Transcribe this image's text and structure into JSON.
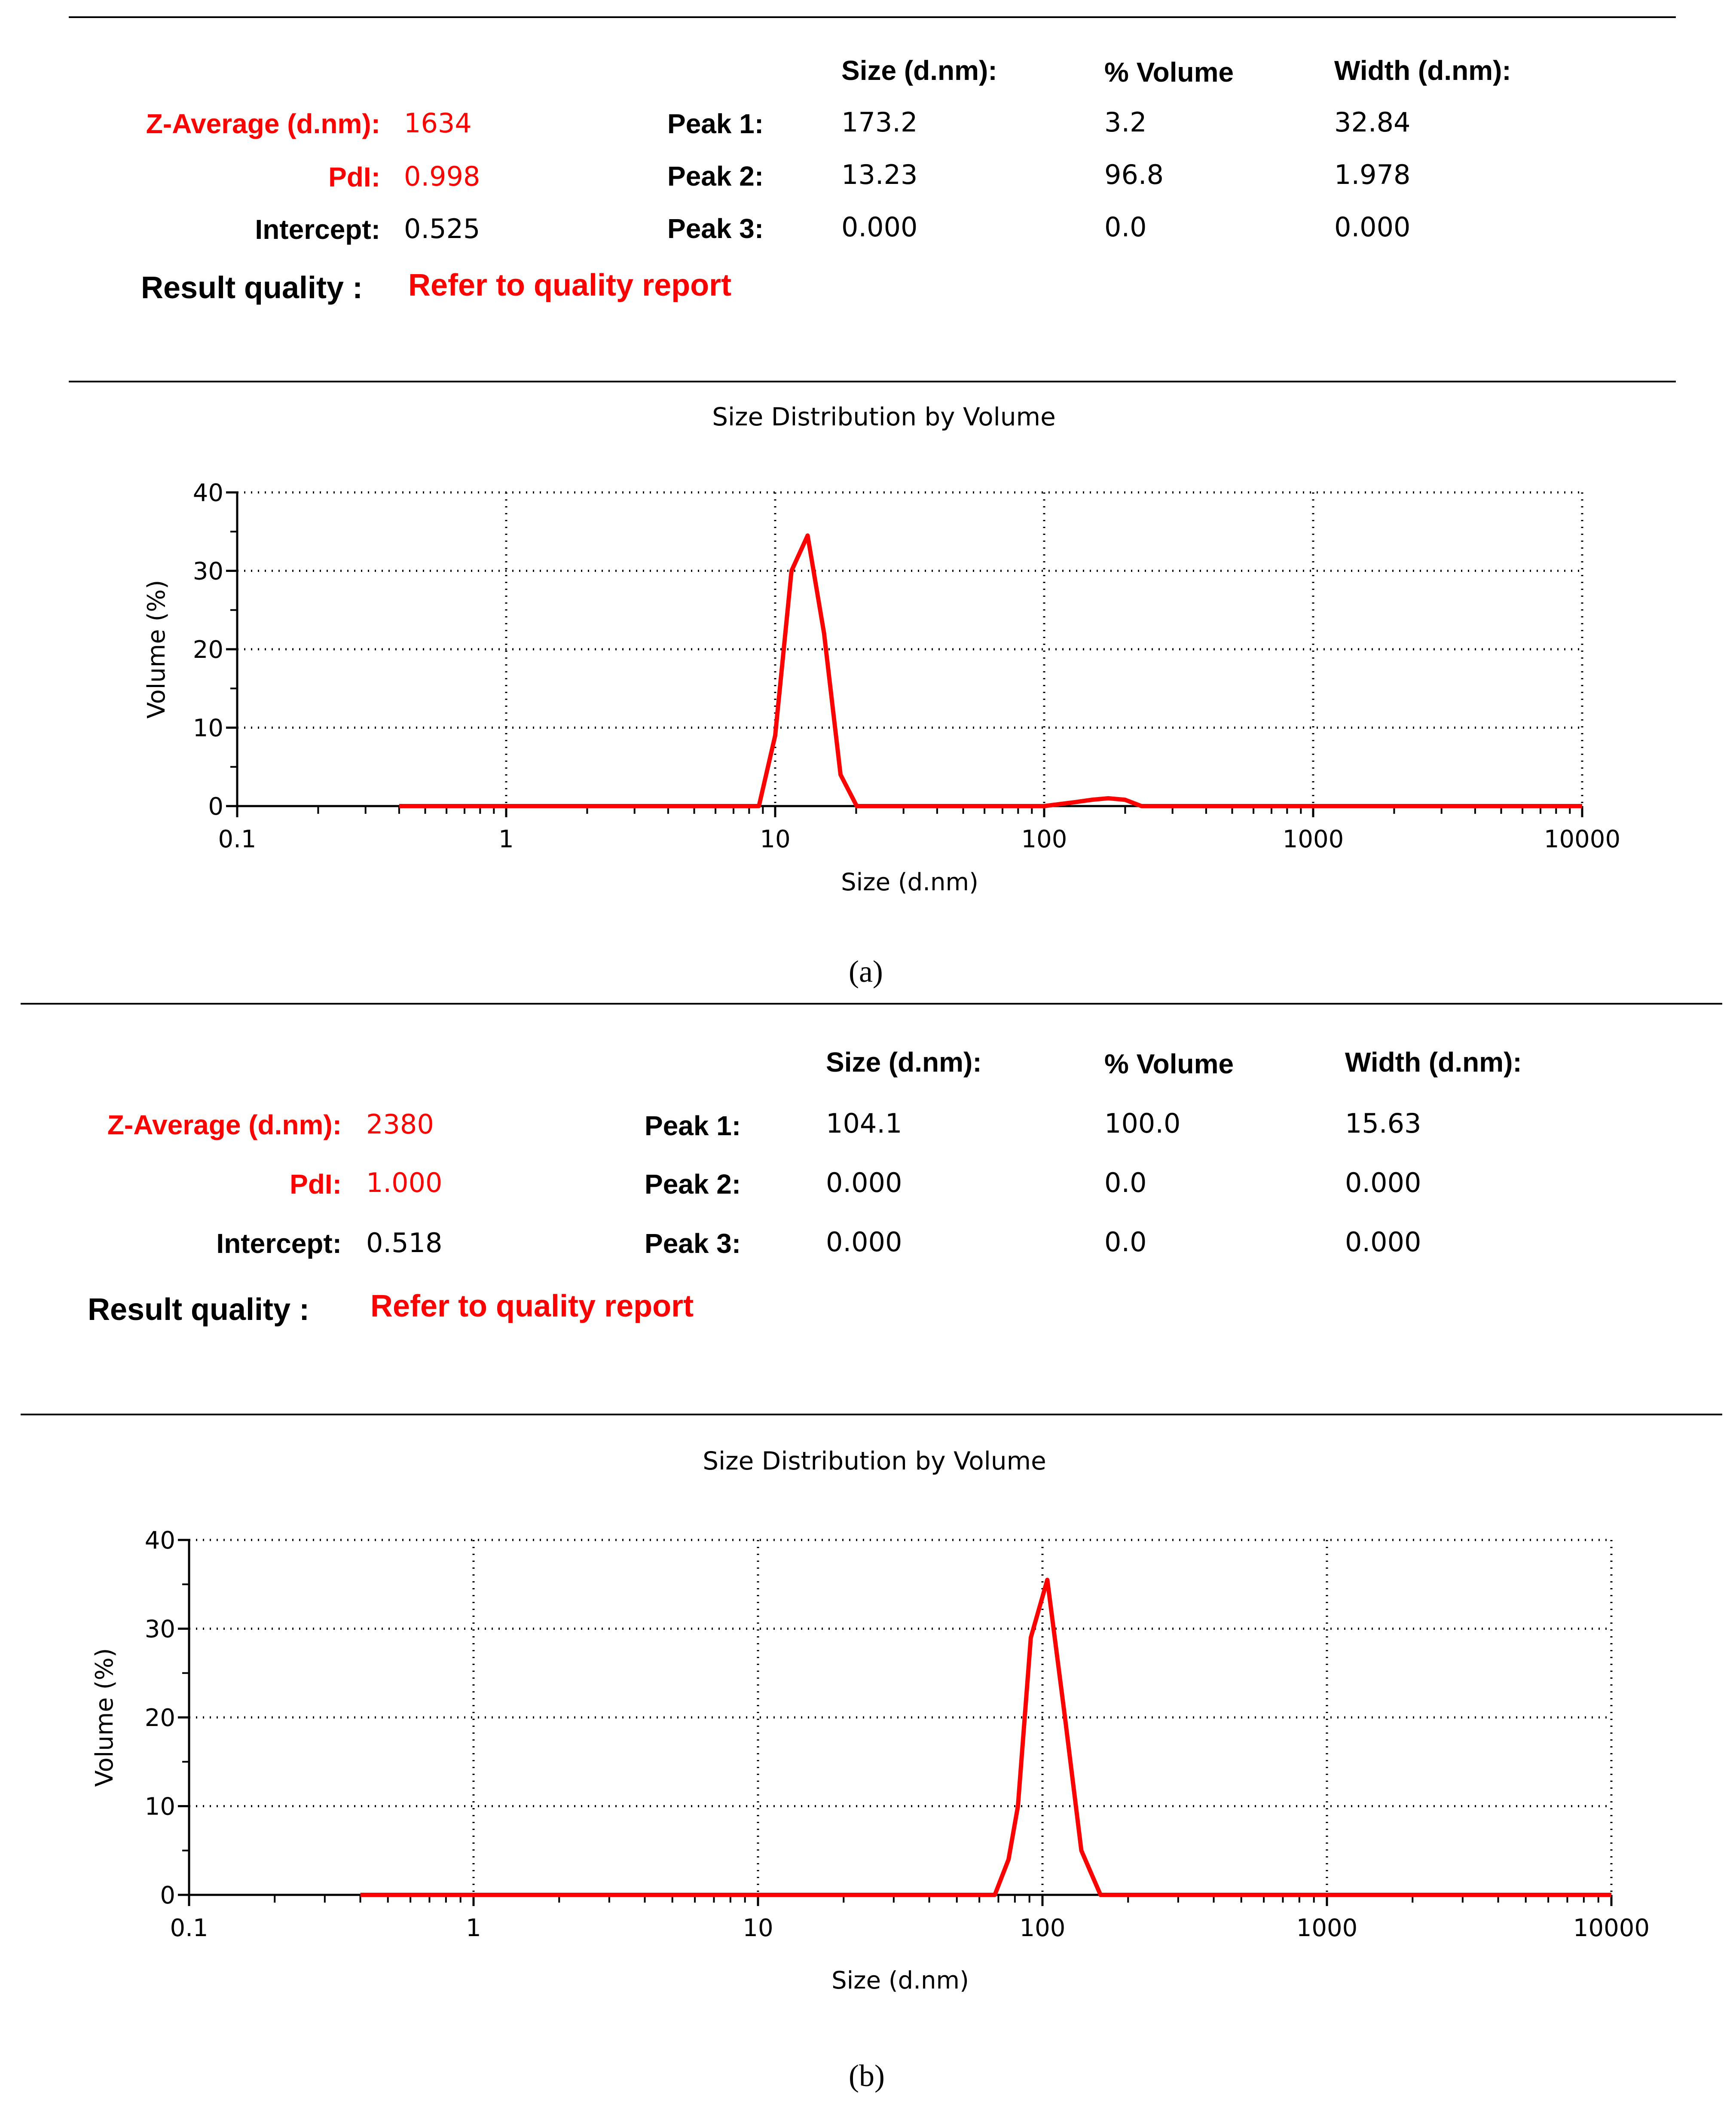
{
  "panels": [
    {
      "headers": {
        "size": "Size (d.nm):",
        "volume": "% Volume",
        "width": "Width (d.nm):"
      },
      "z_average_label": "Z-Average (d.nm):",
      "z_average_value": "1634",
      "pdi_label": "PdI:",
      "pdi_value": "0.998",
      "intercept_label": "Intercept:",
      "intercept_value": "0.525",
      "result_quality_label": "Result quality :",
      "result_quality_value": "Refer to quality report",
      "peaks": [
        {
          "label": "Peak 1:",
          "size": "173.2",
          "volume": "3.2",
          "width": "32.84"
        },
        {
          "label": "Peak 2:",
          "size": "13.23",
          "volume": "96.8",
          "width": "1.978"
        },
        {
          "label": "Peak 3:",
          "size": "0.000",
          "volume": "0.0",
          "width": "0.000"
        }
      ],
      "caption": "(a)"
    },
    {
      "headers": {
        "size": "Size (d.nm):",
        "volume": "% Volume",
        "width": "Width (d.nm):"
      },
      "z_average_label": "Z-Average (d.nm):",
      "z_average_value": "2380",
      "pdi_label": "PdI:",
      "pdi_value": "1.000",
      "intercept_label": "Intercept:",
      "intercept_value": "0.518",
      "result_quality_label": "Result quality :",
      "result_quality_value": "Refer to quality report",
      "peaks": [
        {
          "label": "Peak 1:",
          "size": "104.1",
          "volume": "100.0",
          "width": "15.63"
        },
        {
          "label": "Peak 2:",
          "size": "0.000",
          "volume": "0.0",
          "width": "0.000"
        },
        {
          "label": "Peak 3:",
          "size": "0.000",
          "volume": "0.0",
          "width": "0.000"
        }
      ],
      "caption": "(b)"
    }
  ],
  "colors": {
    "series": "#ff0000",
    "text": "#000000",
    "grid": "#000000"
  },
  "chart_data": [
    {
      "type": "line",
      "title": "Size Distribution by Volume",
      "xlabel": "Size (d.nm)",
      "ylabel": "Volume (%)",
      "xscale": "log",
      "xlim": [
        0.1,
        10000
      ],
      "ylim": [
        0,
        40
      ],
      "xticks": [
        0.1,
        1,
        10,
        100,
        1000,
        10000
      ],
      "xtick_labels": [
        "0.1",
        "1",
        "10",
        "100",
        "1000",
        "10000"
      ],
      "yticks": [
        0,
        10,
        20,
        30,
        40
      ],
      "ytick_labels": [
        "0",
        "10",
        "20",
        "30",
        "40"
      ],
      "grid": true,
      "series": [
        {
          "name": "Volume",
          "x": [
            0.4,
            8.7,
            10.0,
            11.5,
            13.2,
            15.2,
            17.5,
            20.1,
            100,
            130,
            150,
            173,
            200,
            230,
            10000
          ],
          "y": [
            0,
            0,
            9,
            30,
            34.5,
            22,
            4,
            0,
            0,
            0.5,
            0.8,
            1.0,
            0.8,
            0,
            0
          ]
        }
      ]
    },
    {
      "type": "line",
      "title": "Size Distribution by Volume",
      "xlabel": "Size (d.nm)",
      "ylabel": "Volume (%)",
      "xscale": "log",
      "xlim": [
        0.1,
        10000
      ],
      "ylim": [
        0,
        40
      ],
      "xticks": [
        0.1,
        1,
        10,
        100,
        1000,
        10000
      ],
      "xtick_labels": [
        "0.1",
        "1",
        "10",
        "100",
        "1000",
        "10000"
      ],
      "yticks": [
        0,
        10,
        20,
        30,
        40
      ],
      "ytick_labels": [
        "0",
        "10",
        "20",
        "30",
        "40"
      ],
      "grid": true,
      "series": [
        {
          "name": "Volume",
          "x": [
            0.4,
            68,
            76,
            82,
            91,
            104,
            120,
            137,
            160,
            10000
          ],
          "y": [
            0,
            0,
            4,
            10,
            29,
            35.5,
            20,
            5,
            0,
            0
          ]
        }
      ]
    }
  ]
}
